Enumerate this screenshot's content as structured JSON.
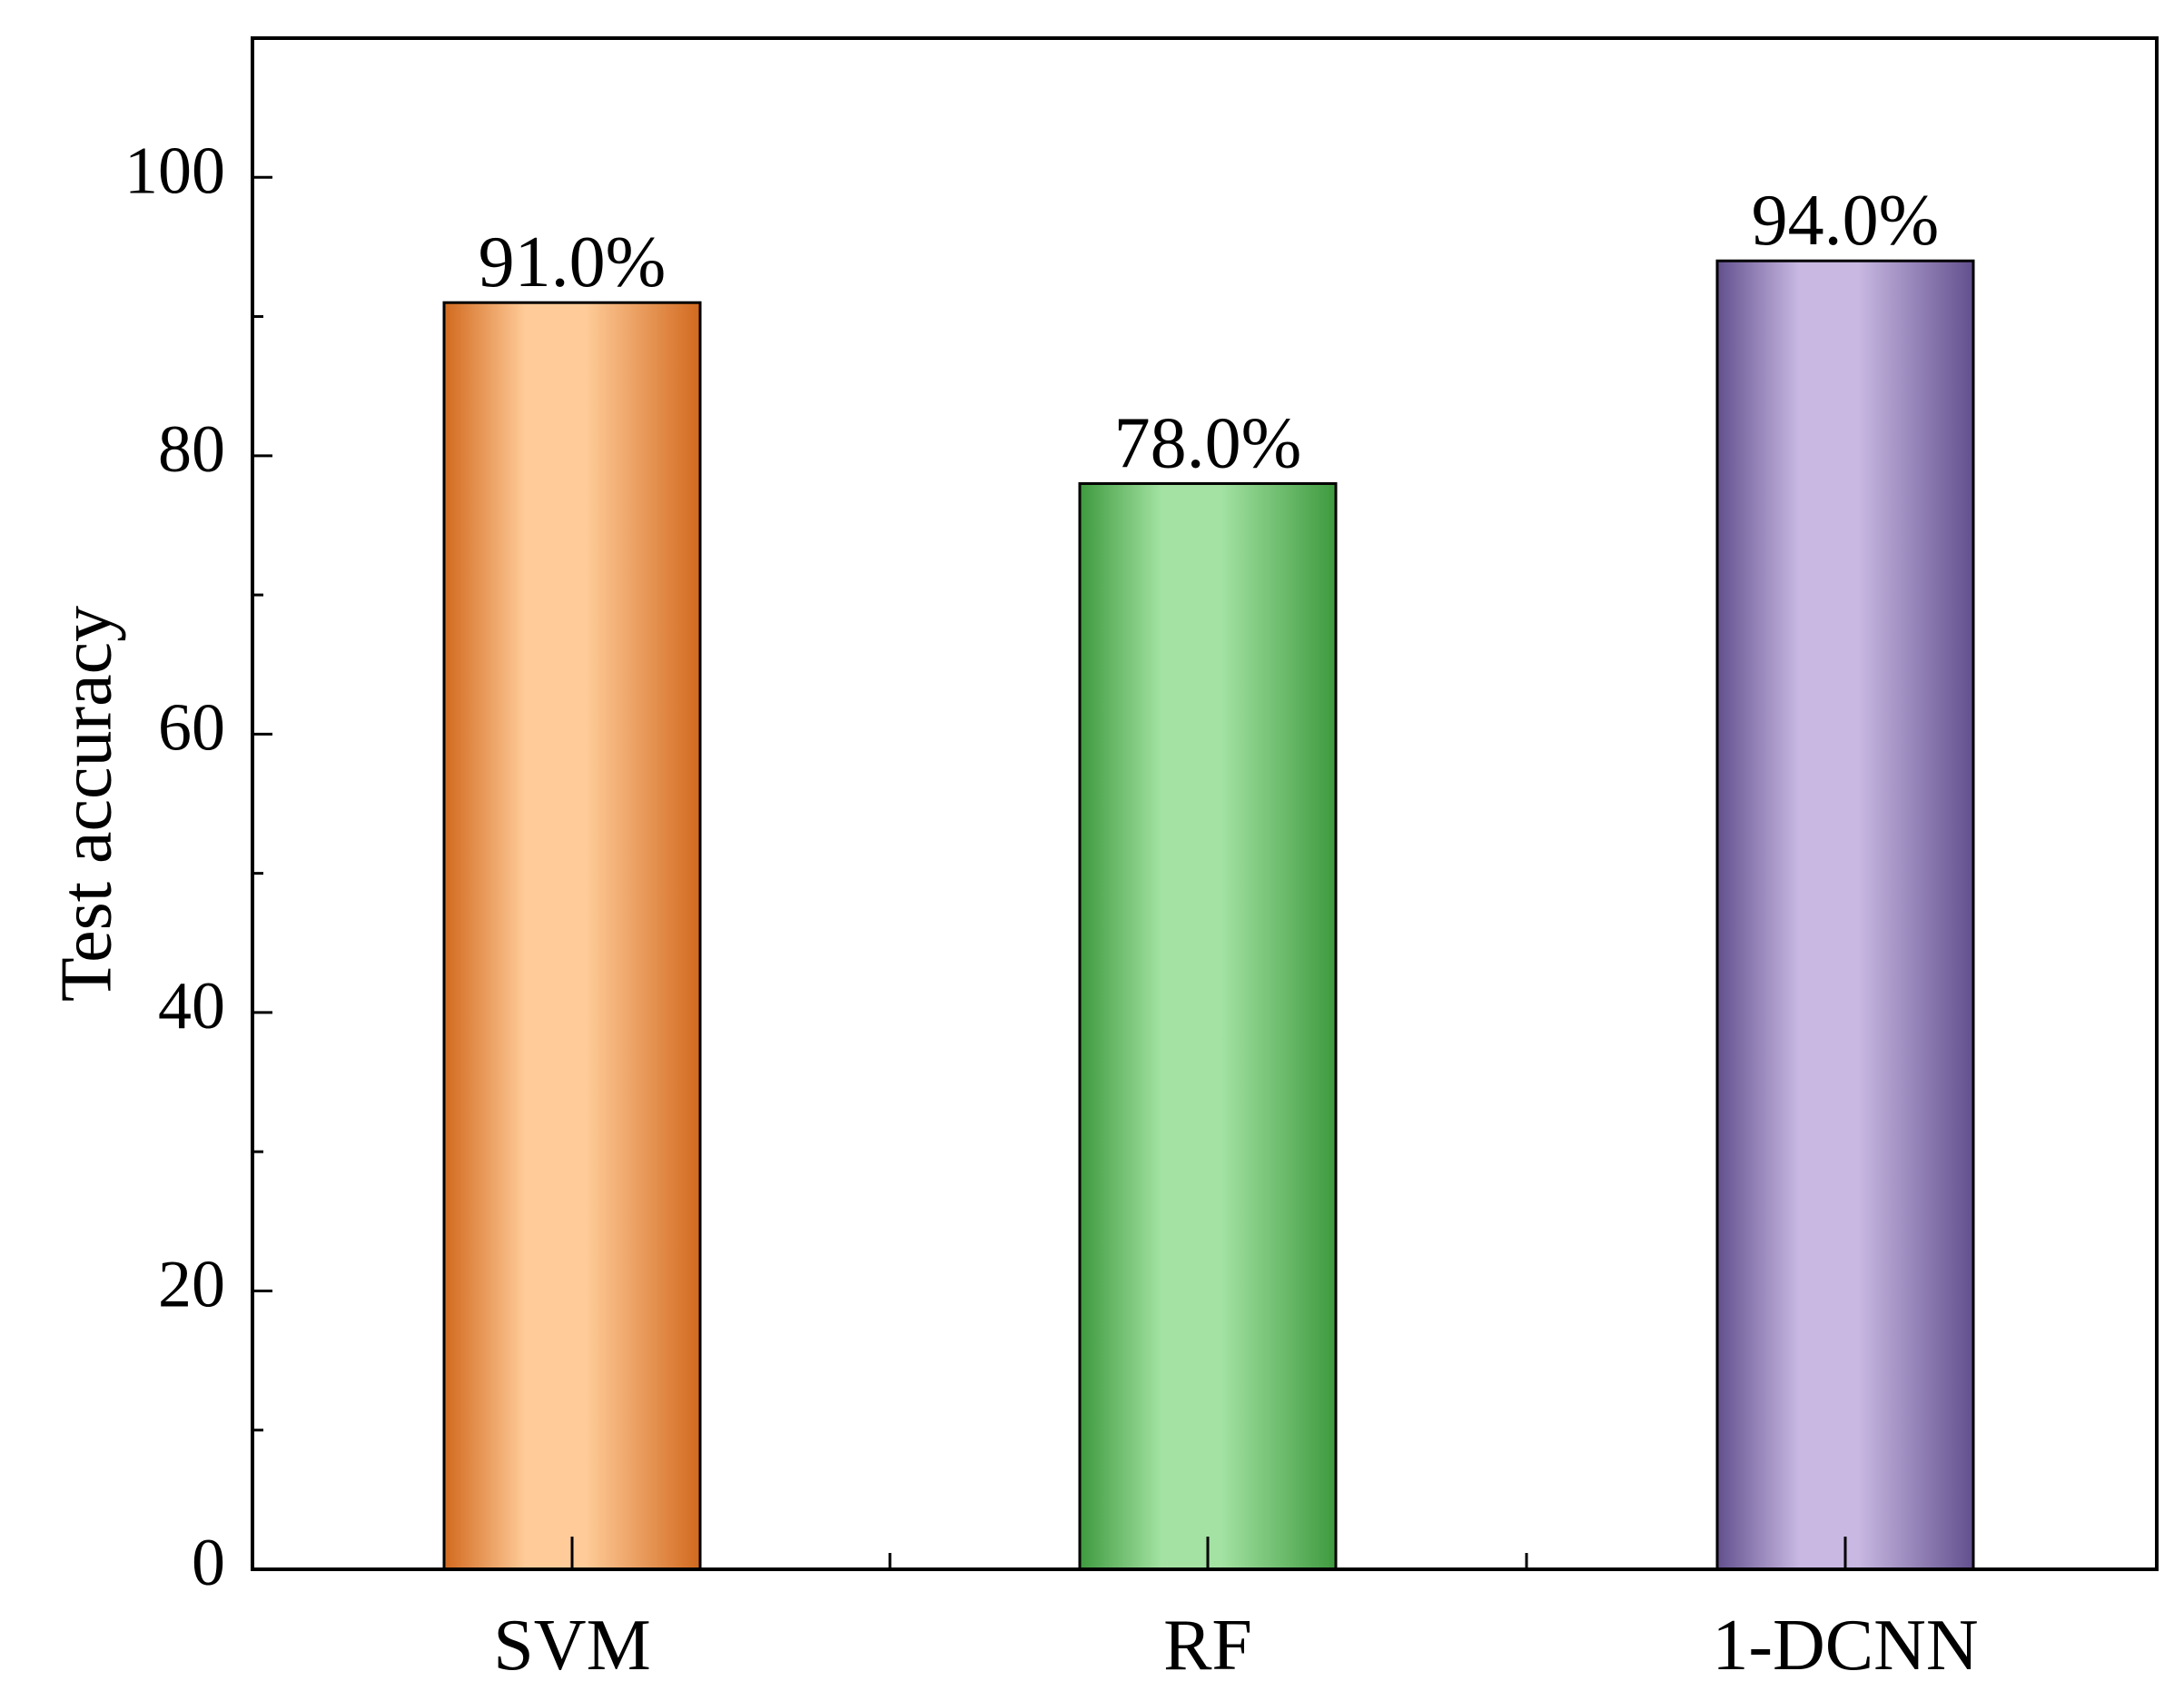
{
  "chart_data": {
    "type": "bar",
    "title": "",
    "xlabel": "",
    "ylabel": "Test accuracy",
    "ylim": [
      0,
      110
    ],
    "yticks": [
      0,
      20,
      40,
      60,
      80,
      100
    ],
    "yminor_ticks": [
      10,
      30,
      50,
      70,
      90
    ],
    "grid": false,
    "categories": [
      "SVM",
      "RF",
      "1-DCNN"
    ],
    "values": [
      91.0,
      78.0,
      94.0
    ],
    "data_labels": [
      "91.0%",
      "78.0%",
      "94.0%"
    ],
    "tick_labels": [
      "0",
      "20",
      "40",
      "60",
      "80",
      "100"
    ],
    "colors": [
      {
        "dark": "#d2691e",
        "light": "#ffcc99"
      },
      {
        "dark": "#3e9a3e",
        "light": "#a3e2a3"
      },
      {
        "dark": "#62508e",
        "light": "#c8b8e2"
      }
    ]
  }
}
